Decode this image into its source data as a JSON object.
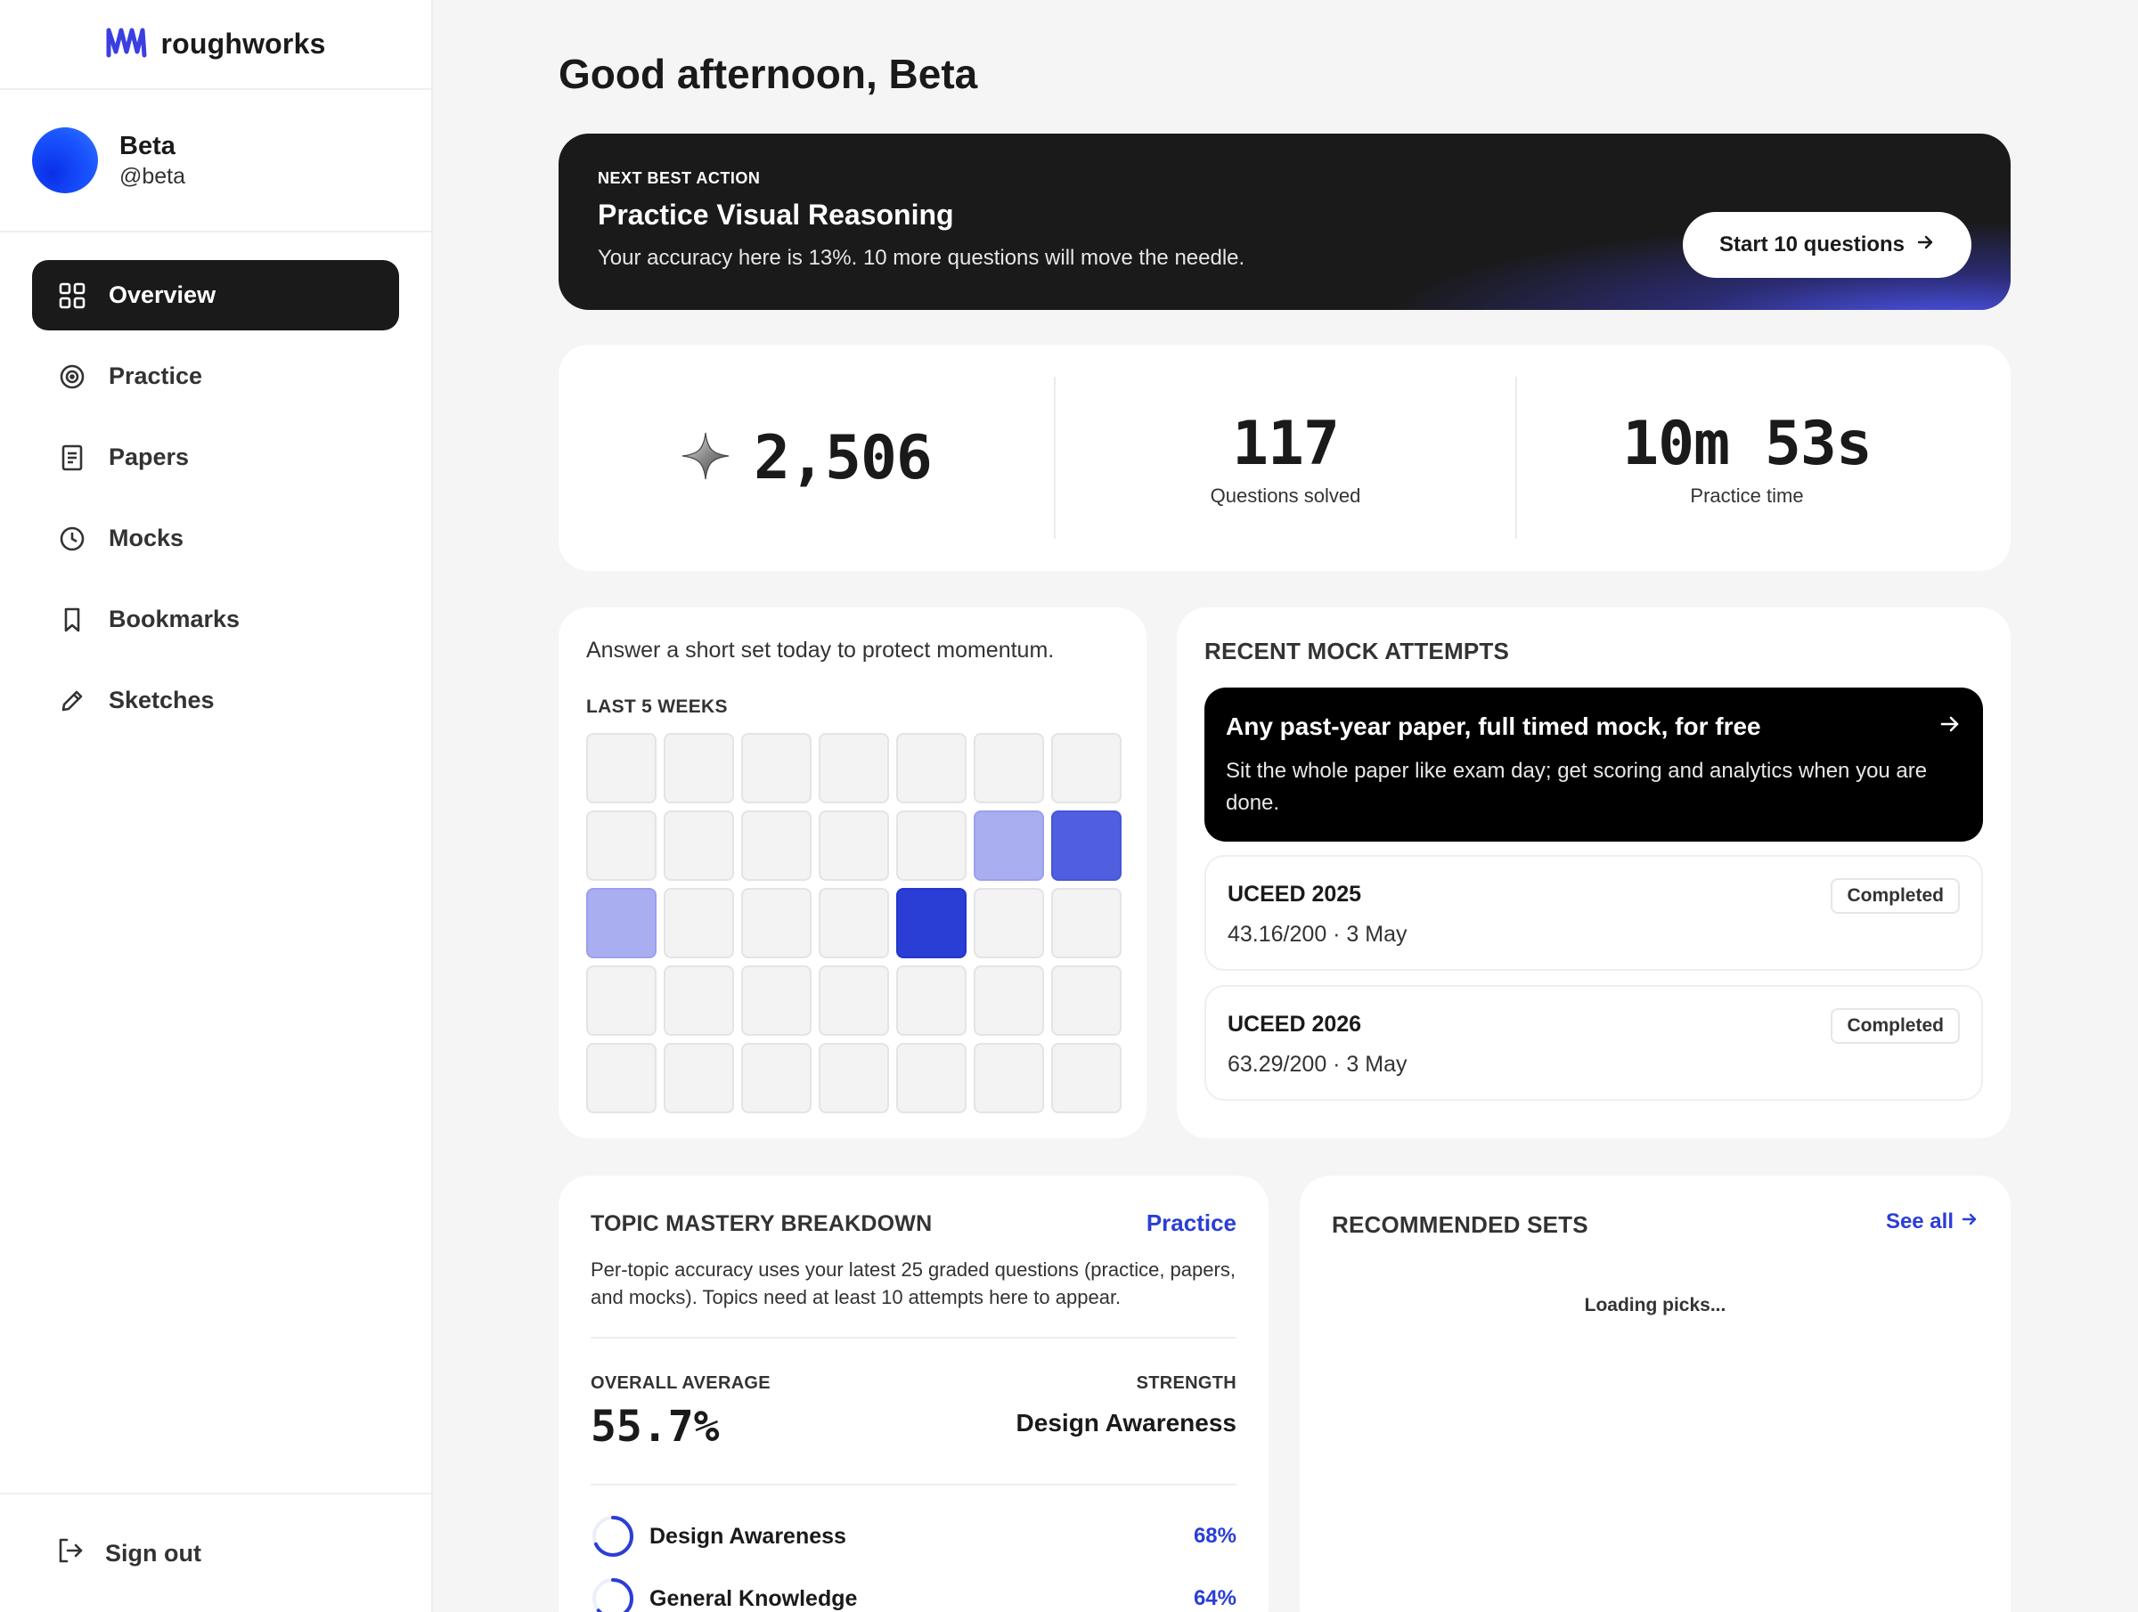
{
  "brand": {
    "name": "roughworks"
  },
  "user": {
    "name": "Beta",
    "handle": "@beta"
  },
  "nav": {
    "items": [
      {
        "label": "Overview",
        "icon": "grid-icon",
        "active": true
      },
      {
        "label": "Practice",
        "icon": "target-icon"
      },
      {
        "label": "Papers",
        "icon": "document-icon"
      },
      {
        "label": "Mocks",
        "icon": "clock-icon"
      },
      {
        "label": "Bookmarks",
        "icon": "bookmark-icon"
      },
      {
        "label": "Sketches",
        "icon": "pencil-icon"
      }
    ],
    "signout": "Sign out"
  },
  "greeting": "Good afternoon, Beta",
  "hero": {
    "kicker": "NEXT BEST ACTION",
    "title": "Practice Visual Reasoning",
    "subtitle": "Your accuracy here is 13%. 10 more questions will move the needle.",
    "button": "Start 10 questions"
  },
  "stats": {
    "points": "2,506",
    "questions_value": "117",
    "questions_label": "Questions solved",
    "time_value": "10m 53s",
    "time_label": "Practice time"
  },
  "streak": {
    "message": "Answer a short set today to protect momentum.",
    "kicker": "LAST 5 WEEKS",
    "levels": [
      [
        0,
        0,
        0,
        0,
        0,
        0,
        0
      ],
      [
        0,
        0,
        0,
        0,
        0,
        1,
        2
      ],
      [
        1,
        0,
        0,
        0,
        3,
        0,
        0
      ],
      [
        0,
        0,
        0,
        0,
        0,
        0,
        0
      ],
      [
        0,
        0,
        0,
        0,
        0,
        0,
        0
      ]
    ]
  },
  "mocks": {
    "title": "RECENT MOCK ATTEMPTS",
    "cta_title": "Any past-year paper, full timed mock, for free",
    "cta_sub": "Sit the whole paper like exam day; get scoring and analytics when you are done.",
    "attempts": [
      {
        "name": "UCEED 2025",
        "meta": "43.16/200 · 3 May",
        "status": "Completed"
      },
      {
        "name": "UCEED 2026",
        "meta": "63.29/200 · 3 May",
        "status": "Completed"
      }
    ]
  },
  "topic": {
    "title": "TOPIC MASTERY BREAKDOWN",
    "link": "Practice",
    "description": "Per-topic accuracy uses your latest 25 graded questions (practice, papers, and mocks). Topics need at least 10 attempts here to appear.",
    "avg_label": "OVERALL AVERAGE",
    "avg_value": "55.7%",
    "strength_label": "STRENGTH",
    "strength_value": "Design Awareness",
    "rows": [
      {
        "name": "Design Awareness",
        "pct": "68%",
        "value": 0.68
      },
      {
        "name": "General Knowledge",
        "pct": "64%",
        "value": 0.64
      }
    ]
  },
  "recs": {
    "title": "RECOMMENDED SETS",
    "link": "See all",
    "loading": "Loading picks..."
  },
  "colors": {
    "accent": "#2a3ed6",
    "dark": "#1a1a1a",
    "heat_1": "#a9aef0",
    "heat_2": "#4f5fe0",
    "heat_3": "#2a3ed6"
  }
}
